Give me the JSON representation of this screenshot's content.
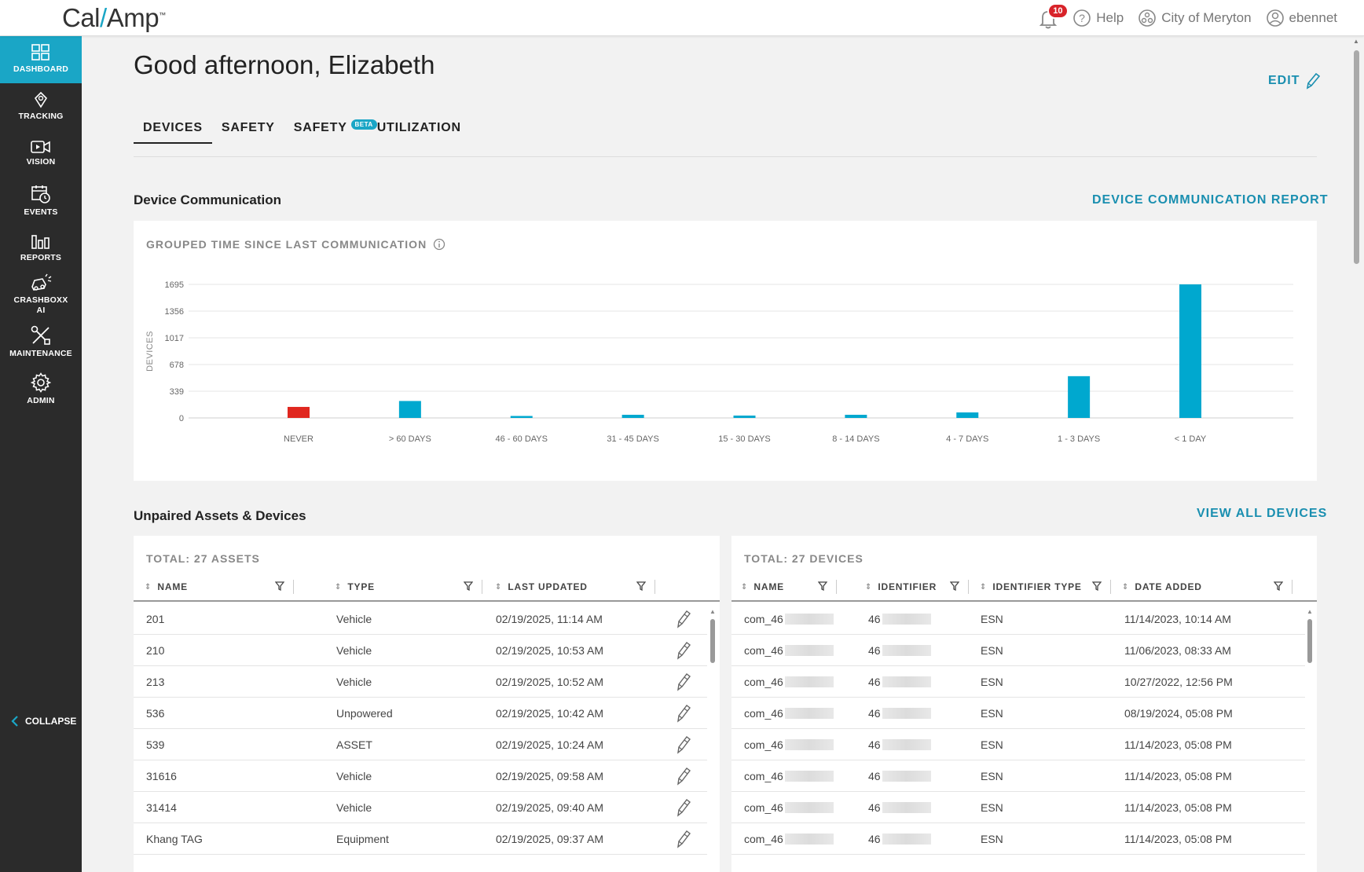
{
  "header": {
    "logo_text_a": "Cal",
    "logo_slash": "/",
    "logo_text_b": "Amp",
    "notification_count": "10",
    "help_label": "Help",
    "org_label": "City of Meryton",
    "user_label": "ebennet"
  },
  "sidebar": {
    "items": [
      {
        "label": "DASHBOARD",
        "icon": "dashboard-icon"
      },
      {
        "label": "TRACKING",
        "icon": "location-pin-icon"
      },
      {
        "label": "VISION",
        "icon": "video-camera-icon"
      },
      {
        "label": "EVENTS",
        "icon": "calendar-clock-icon"
      },
      {
        "label": "REPORTS",
        "icon": "bar-chart-icon"
      },
      {
        "label": "CRASHBOXX AI",
        "icon": "crash-car-icon"
      },
      {
        "label": "MAINTENANCE",
        "icon": "wrench-screwdriver-icon"
      },
      {
        "label": "ADMIN",
        "icon": "gear-icon"
      }
    ],
    "collapse_label": "COLLAPSE"
  },
  "main": {
    "greeting": "Good afternoon, Elizabeth",
    "edit_label": "EDIT",
    "tabs": [
      {
        "label": "DEVICES"
      },
      {
        "label": "SAFETY"
      },
      {
        "label": "SAFETY",
        "badge": "BETA"
      },
      {
        "label": "UTILIZATION"
      }
    ]
  },
  "device_comm": {
    "title": "Device Communication",
    "report_link": "DEVICE COMMUNICATION REPORT",
    "chart_title": "GROUPED TIME SINCE LAST COMMUNICATION"
  },
  "chart_data": {
    "type": "bar",
    "title": "GROUPED TIME SINCE LAST COMMUNICATION",
    "ylabel": "DEVICES",
    "xlabel": "",
    "ylim": [
      0,
      1695
    ],
    "yticks": [
      0,
      339,
      678,
      1017,
      1356,
      1695
    ],
    "categories": [
      "NEVER",
      "> 60 DAYS",
      "46 - 60 DAYS",
      "31 - 45 DAYS",
      "15 - 30 DAYS",
      "8 - 14 DAYS",
      "4 - 7 DAYS",
      "1 - 3 DAYS",
      "< 1 DAY"
    ],
    "values": [
      140,
      215,
      25,
      40,
      30,
      40,
      70,
      530,
      1695
    ],
    "colors": [
      "#e0271f",
      "#00a8cf",
      "#00a8cf",
      "#00a8cf",
      "#00a8cf",
      "#00a8cf",
      "#00a8cf",
      "#00a8cf",
      "#00a8cf"
    ],
    "grid": true
  },
  "unpaired": {
    "title": "Unpaired Assets & Devices",
    "view_all_link": "VIEW ALL DEVICES",
    "assets": {
      "total_label": "TOTAL: 27 ASSETS",
      "columns": [
        "NAME",
        "TYPE",
        "LAST UPDATED"
      ],
      "rows": [
        {
          "name": "201",
          "type": "Vehicle",
          "updated": "02/19/2025, 11:14 AM"
        },
        {
          "name": "210",
          "type": "Vehicle",
          "updated": "02/19/2025, 10:53 AM"
        },
        {
          "name": "213",
          "type": "Vehicle",
          "updated": "02/19/2025, 10:52 AM"
        },
        {
          "name": "536",
          "type": "Unpowered",
          "updated": "02/19/2025, 10:42 AM"
        },
        {
          "name": "539",
          "type": "ASSET",
          "updated": "02/19/2025, 10:24 AM"
        },
        {
          "name": "31616",
          "type": "Vehicle",
          "updated": "02/19/2025, 09:58 AM"
        },
        {
          "name": "31414",
          "type": "Vehicle",
          "updated": "02/19/2025, 09:40 AM"
        },
        {
          "name": "Khang TAG",
          "type": "Equipment",
          "updated": "02/19/2025, 09:37 AM"
        }
      ]
    },
    "devices": {
      "total_label": "TOTAL: 27 DEVICES",
      "columns": [
        "NAME",
        "IDENTIFIER",
        "IDENTIFIER TYPE",
        "DATE ADDED"
      ],
      "rows": [
        {
          "name": "com_46",
          "identifier": "46",
          "id_type": "ESN",
          "added": "11/14/2023, 10:14 AM"
        },
        {
          "name": "com_46",
          "identifier": "46",
          "id_type": "ESN",
          "added": "11/06/2023, 08:33 AM"
        },
        {
          "name": "com_46",
          "identifier": "46",
          "id_type": "ESN",
          "added": "10/27/2022, 12:56 PM"
        },
        {
          "name": "com_46",
          "identifier": "46",
          "id_type": "ESN",
          "added": "08/19/2024, 05:08 PM"
        },
        {
          "name": "com_46",
          "identifier": "46",
          "id_type": "ESN",
          "added": "11/14/2023, 05:08 PM"
        },
        {
          "name": "com_46",
          "identifier": "46",
          "id_type": "ESN",
          "added": "11/14/2023, 05:08 PM"
        },
        {
          "name": "com_46",
          "identifier": "46",
          "id_type": "ESN",
          "added": "11/14/2023, 05:08 PM"
        },
        {
          "name": "com_46",
          "identifier": "46",
          "id_type": "ESN",
          "added": "11/14/2023, 05:08 PM"
        }
      ]
    }
  }
}
